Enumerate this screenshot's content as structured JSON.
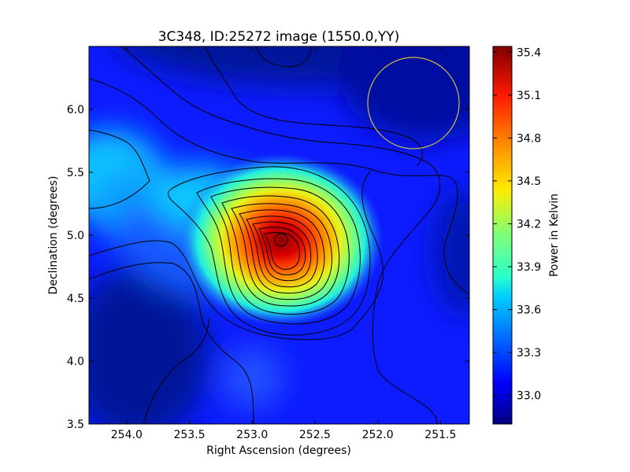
{
  "chart_data": {
    "type": "heatmap",
    "title": "3C348, ID:25272 image (1550.0,YY)",
    "xlabel": "Right Ascension (degrees)",
    "ylabel": "Declination (degrees)",
    "xlim": [
      254.3,
      251.27
    ],
    "ylim": [
      3.5,
      6.5
    ],
    "x_ticks": [
      254.0,
      253.5,
      253.0,
      252.5,
      252.0,
      251.5
    ],
    "x_tick_labels": [
      "254.0",
      "253.5",
      "253.0",
      "252.5",
      "252.0",
      "251.5"
    ],
    "y_ticks": [
      3.5,
      4.0,
      4.5,
      5.0,
      5.5,
      6.0
    ],
    "y_tick_labels": [
      "3.5",
      "4.0",
      "4.5",
      "5.0",
      "5.5",
      "6.0"
    ],
    "colorbar": {
      "label": "Power in Kelvin",
      "range": [
        32.8,
        35.44
      ],
      "colormap": "jet",
      "ticks": [
        33.0,
        33.3,
        33.6,
        33.9,
        34.2,
        34.5,
        34.8,
        35.1,
        35.4
      ],
      "tick_labels": [
        "33.0",
        "33.3",
        "33.6",
        "33.9",
        "34.2",
        "34.5",
        "34.8",
        "35.1",
        "35.4"
      ]
    },
    "peak": {
      "ra": 252.78,
      "dec": 4.95,
      "value": 35.44
    },
    "beam_circle": {
      "ra": 251.72,
      "dec": 6.05,
      "color": "#c8c040"
    },
    "grid": false
  }
}
